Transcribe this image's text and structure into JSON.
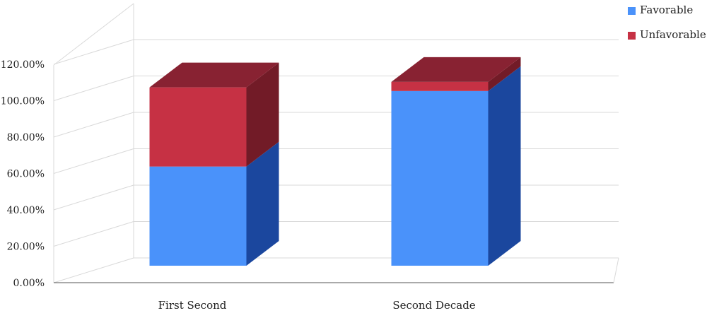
{
  "chart_data": {
    "type": "bar",
    "stacked": true,
    "three_d": true,
    "categories": [
      "First Second",
      "Second Decade"
    ],
    "series": [
      {
        "name": "Favorable",
        "values": [
          54.5,
          96.0
        ],
        "color": "#4A92FA",
        "side_color": "#1B479E"
      },
      {
        "name": "Unfavorable",
        "values": [
          43.5,
          5.0
        ],
        "color": "#C63144",
        "side_color": "#721B27",
        "top_color": "#882232"
      }
    ],
    "ylim": [
      0,
      120
    ],
    "ytick_labels": [
      "0.00%",
      "20.00%",
      "40.00%",
      "60.00%",
      "80.00%",
      "100.00%",
      "120.00%"
    ],
    "grid": true,
    "legend_position": "top-right",
    "title": "",
    "xlabel": "",
    "ylabel": ""
  }
}
